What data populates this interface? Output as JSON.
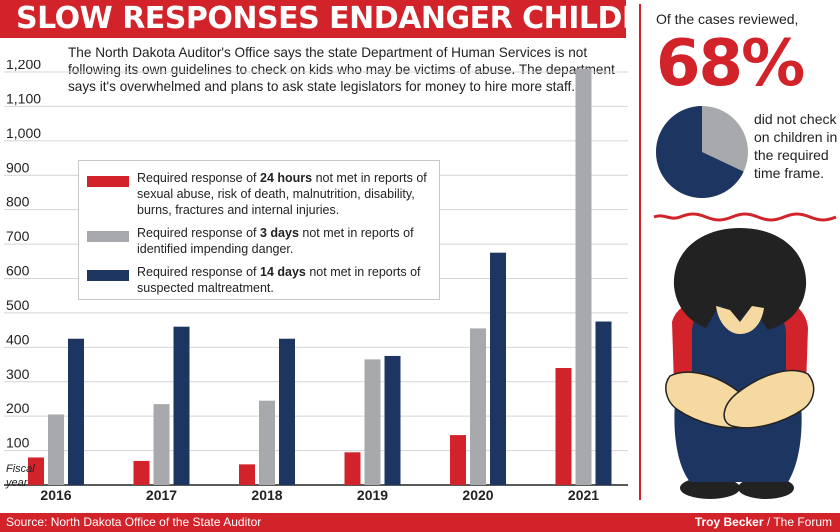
{
  "header": {
    "title": "SLOW RESPONSES ENDANGER CHILDREN"
  },
  "intro": "The North Dakota Auditor's Office says the state Department of Human Services is not following its own guidelines to check on kids who may be victims of abuse. The department says it's overwhelmed and plans to ask state legislators for money to hire more staff.",
  "fiscal_label": [
    "Fiscal",
    "year"
  ],
  "legend": [
    {
      "pre": "Required response of ",
      "bold": "24 hours",
      "post": " not met in reports of sexual abuse, risk of death, malnutrition, disability, burns, fractures and internal injuries."
    },
    {
      "pre": "Required response of ",
      "bold": "3 days",
      "post": " not met in reports of identified impending danger."
    },
    {
      "pre": "Required response of ",
      "bold": "14 days",
      "post": " not met in reports of suspected maltreatment."
    }
  ],
  "colors": {
    "red": "#d2232a",
    "gray": "#a7a9ac",
    "navy": "#1c3661",
    "grid": "#d4d4d4"
  },
  "chart_data": {
    "type": "bar",
    "title": "SLOW RESPONSES ENDANGER CHILDREN",
    "xlabel": "Fiscal year",
    "ylabel": "",
    "categories": [
      "2016",
      "2017",
      "2018",
      "2019",
      "2020",
      "2021"
    ],
    "series": [
      {
        "name": "24 hours",
        "values": [
          80,
          70,
          60,
          95,
          145,
          340
        ]
      },
      {
        "name": "3 days",
        "values": [
          205,
          235,
          245,
          365,
          455,
          1210
        ]
      },
      {
        "name": "14 days",
        "values": [
          425,
          460,
          425,
          375,
          675,
          475
        ]
      }
    ],
    "ylim": [
      0,
      1200
    ],
    "yticks": [
      100,
      200,
      300,
      400,
      500,
      600,
      700,
      800,
      900,
      "1,000",
      "1,100",
      "1,200"
    ],
    "grid": true
  },
  "sidebar": {
    "lead": "Of the cases reviewed,",
    "percent_label": "68%",
    "percent_value": 68,
    "description": "did not check on children in the required time frame."
  },
  "footer": {
    "source": "Source: North Dakota Office of the State Auditor",
    "credit_name": "Troy Becker",
    "credit_org": " / The Forum"
  }
}
